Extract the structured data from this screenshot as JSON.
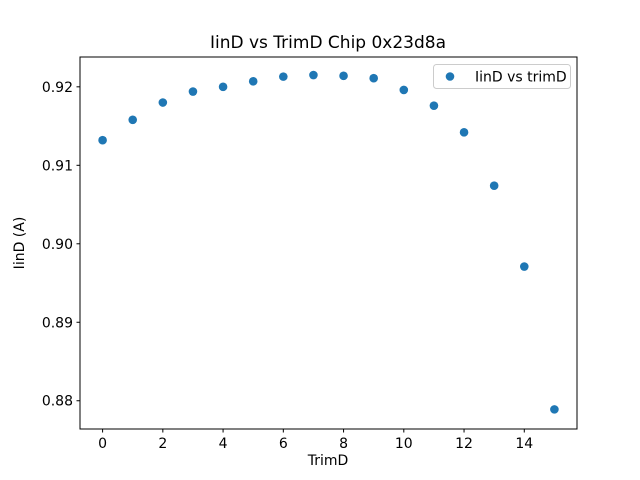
{
  "chart_data": {
    "type": "scatter",
    "title": "IinD vs TrimD Chip 0x23d8a",
    "xlabel": "TrimD",
    "ylabel": "IinD (A)",
    "legend_position": "upper right",
    "grid": false,
    "background_color": "#ffffff",
    "marker_color": "#1f77b4",
    "xlim": [
      -0.75,
      15.75
    ],
    "ylim": [
      0.8764,
      0.9238
    ],
    "xticks": [
      0,
      2,
      4,
      6,
      8,
      10,
      12,
      14
    ],
    "yticks": [
      0.88,
      0.89,
      0.9,
      0.91,
      0.92
    ],
    "series": [
      {
        "name": "IinD vs trimD",
        "x": [
          0,
          1,
          2,
          3,
          4,
          5,
          6,
          7,
          8,
          9,
          10,
          11,
          12,
          13,
          14,
          15
        ],
        "y": [
          0.9132,
          0.9158,
          0.918,
          0.9194,
          0.92,
          0.9207,
          0.9213,
          0.9215,
          0.9214,
          0.9211,
          0.9196,
          0.9176,
          0.9142,
          0.9074,
          0.8971,
          0.8789
        ]
      }
    ]
  }
}
